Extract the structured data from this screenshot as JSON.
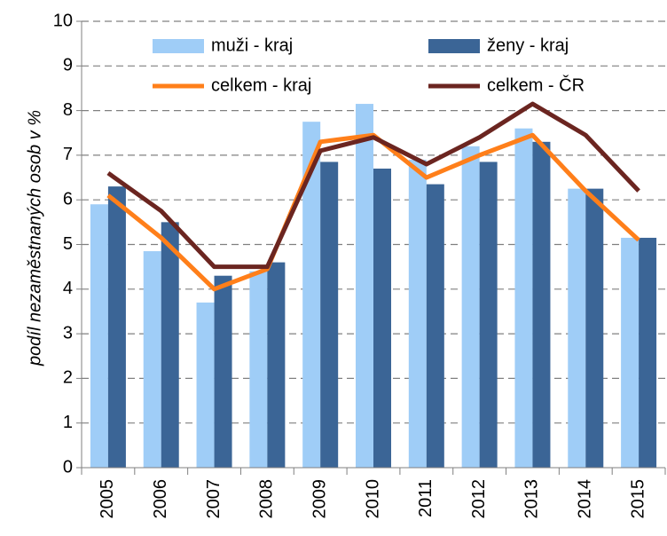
{
  "chart_data": {
    "type": "bar_line",
    "y_label": "podíl nezaměstnaných osob v %",
    "categories": [
      "2005",
      "2006",
      "2007",
      "2008",
      "2009",
      "2010",
      "2011",
      "2012",
      "2013",
      "2014",
      "2015"
    ],
    "series": [
      {
        "name": "muži - kraj",
        "type": "bar",
        "color": "#9fcdf7",
        "values": [
          5.9,
          4.85,
          3.7,
          4.4,
          7.75,
          8.15,
          6.9,
          7.2,
          7.6,
          6.25,
          5.15
        ]
      },
      {
        "name": "ženy - kraj",
        "type": "bar",
        "color": "#3b6596",
        "values": [
          6.3,
          5.5,
          4.3,
          4.6,
          6.85,
          6.7,
          6.35,
          6.85,
          7.3,
          6.25,
          5.15
        ]
      },
      {
        "name": "celkem - kraj",
        "type": "line",
        "color": "#ff7f1a",
        "values": [
          6.1,
          5.15,
          4.0,
          4.45,
          7.3,
          7.45,
          6.5,
          7.0,
          7.45,
          6.2,
          5.1
        ]
      },
      {
        "name": "celkem - ČR",
        "type": "line",
        "color": "#6b2520",
        "values": [
          6.6,
          5.75,
          4.5,
          4.5,
          7.1,
          7.4,
          6.8,
          7.4,
          8.15,
          7.45,
          6.2
        ]
      }
    ],
    "ylim": [
      0,
      10
    ],
    "yticks": [
      0,
      1,
      2,
      3,
      4,
      5,
      6,
      7,
      8,
      9,
      10
    ],
    "grid": true
  }
}
